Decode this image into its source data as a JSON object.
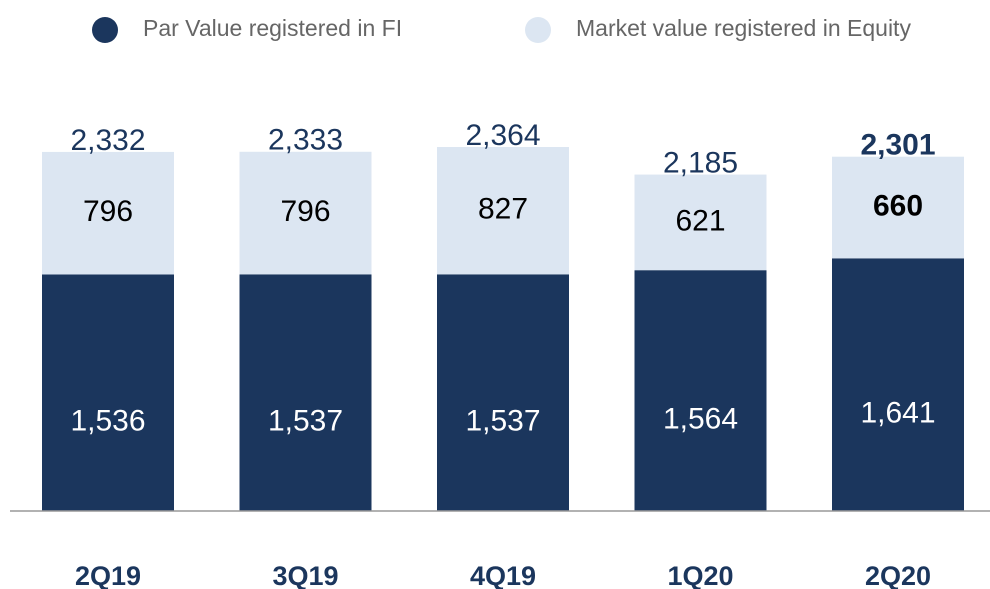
{
  "chart_data": {
    "type": "stacked_bar",
    "categories": [
      "2Q19",
      "3Q19",
      "4Q19",
      "1Q20",
      "2Q20"
    ],
    "series": [
      {
        "name": "Par Value registered in FI",
        "color": "#1b365d",
        "values": [
          1536,
          1537,
          1537,
          1564,
          1641
        ],
        "value_labels": [
          "1,536",
          "1,537",
          "1,537",
          "1,564",
          "1,641"
        ]
      },
      {
        "name": "Market value registered in Equity",
        "color": "#dce6f2",
        "values": [
          796,
          796,
          827,
          621,
          660
        ]
      }
    ],
    "totals": [
      2332,
      2333,
      2364,
      2185,
      2301
    ],
    "total_labels": [
      "2,332",
      "2,333",
      "2,364",
      "2,185",
      "2,301"
    ],
    "legend": "top"
  }
}
